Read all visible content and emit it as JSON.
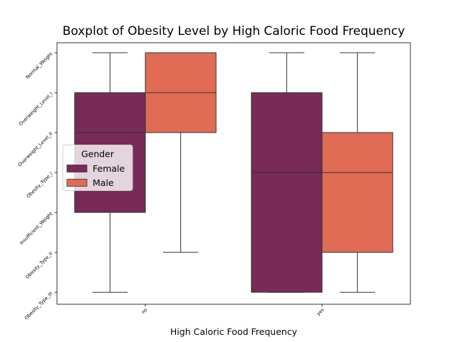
{
  "chart_data": {
    "type": "boxplot",
    "title": "Boxplot of Obesity Level by High Caloric Food Frequency",
    "x_label": "High Caloric Food Frequency",
    "categories": [
      "no",
      "yes"
    ],
    "ylim": [
      -0.3,
      6.25
    ],
    "yticks": [
      {
        "value": 0,
        "label": "Obesity_Type_III"
      },
      {
        "value": 1,
        "label": "Obesity_Type_II"
      },
      {
        "value": 2,
        "label": "Insufficient_Weight"
      },
      {
        "value": 3,
        "label": "Obesity_Type_I"
      },
      {
        "value": 4,
        "label": "Overweight_Level_II"
      },
      {
        "value": 5,
        "label": "Overweight_Level_I"
      },
      {
        "value": 6,
        "label": "Normal_Weight"
      }
    ],
    "legend_title": "Gender",
    "legend_position": "center left",
    "series": [
      {
        "name": "Female",
        "color": "#782a58",
        "whisker_low": [
          0,
          0
        ],
        "q1": [
          2,
          0
        ],
        "median": [
          4,
          3
        ],
        "q3": [
          5,
          5
        ],
        "whisker_high": [
          6,
          6
        ]
      },
      {
        "name": "Male",
        "color": "#e06c55",
        "whisker_low": [
          1,
          0
        ],
        "q1": [
          4,
          1
        ],
        "median": [
          5,
          3
        ],
        "q3": [
          6,
          4
        ],
        "whisker_high": [
          6,
          6
        ]
      }
    ]
  }
}
